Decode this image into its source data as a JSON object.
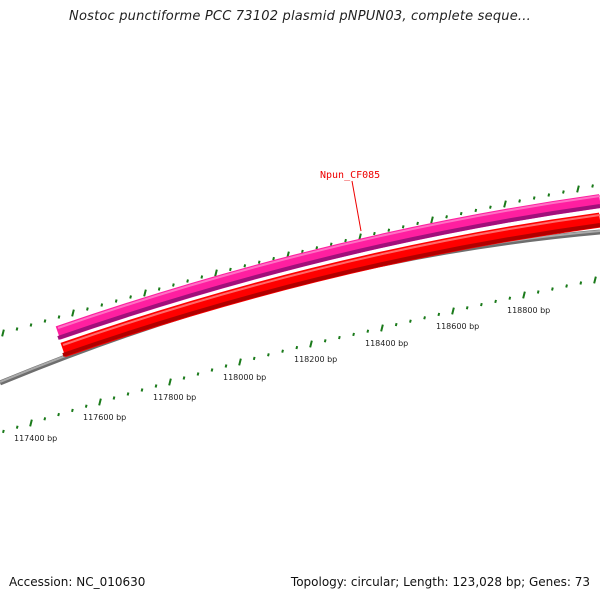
{
  "title": "Nostoc punctiforme PCC 73102 plasmid pNPUN03, complete seque...",
  "gene": {
    "name": "Npun_CF085"
  },
  "ruler_labels": [
    "117400 bp",
    "117600 bp",
    "117800 bp",
    "118000 bp",
    "118200 bp",
    "118400 bp",
    "118600 bp",
    "118800 bp"
  ],
  "footer": {
    "accession": "Accession: NC_010630",
    "topology": "Topology: circular; Length: 123,028 bp; Genes: 73"
  },
  "colors": {
    "tick": "#1a7a1a",
    "gene_forward": "#ff1fa0",
    "gene_cds": "#ff0000",
    "backbone": "#888888",
    "label": "#ee0000"
  }
}
